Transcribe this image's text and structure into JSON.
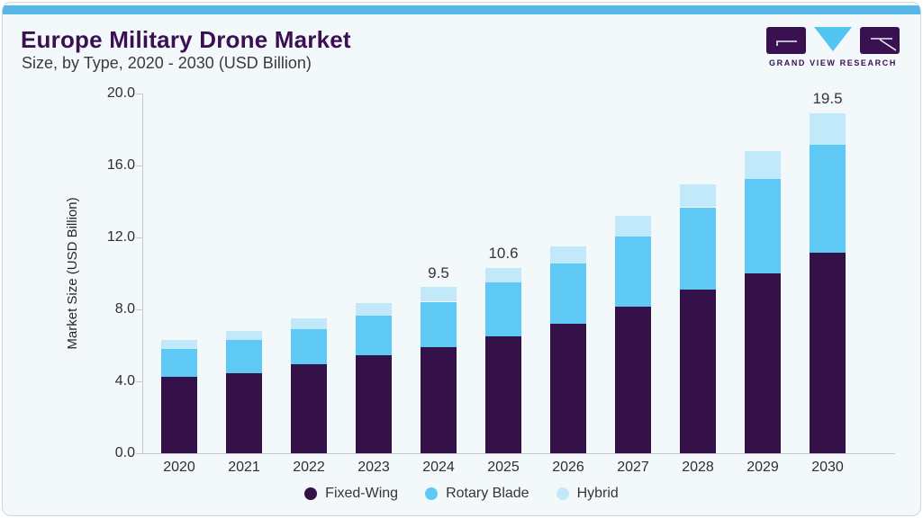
{
  "header": {
    "title": "Europe Military Drone Market",
    "subtitle": "Size, by Type, 2020 - 2030 (USD Billion)"
  },
  "logo": {
    "name": "Grand View Research logo",
    "text": "GRAND VIEW RESEARCH",
    "purple": "#3a1150",
    "blue": "#52c5f2"
  },
  "chart_data": {
    "type": "bar",
    "stacked": true,
    "title": "Europe Military Drone Market Size, by Type, 2020 - 2030 (USD Billion)",
    "categories": [
      "2020",
      "2021",
      "2022",
      "2023",
      "2024",
      "2025",
      "2026",
      "2027",
      "2028",
      "2029",
      "2030"
    ],
    "series": [
      {
        "name": "Fixed-Wing",
        "color": "#341149",
        "values": [
          4.4,
          4.6,
          5.1,
          5.6,
          6.1,
          6.7,
          7.4,
          8.4,
          9.4,
          10.3,
          11.5
        ]
      },
      {
        "name": "Rotary Blade",
        "color": "#5dc9f4",
        "values": [
          1.6,
          1.9,
          2.0,
          2.3,
          2.6,
          3.1,
          3.5,
          4.0,
          4.7,
          5.4,
          6.2
        ]
      },
      {
        "name": "Hybrid",
        "color": "#c1e9fa",
        "values": [
          0.5,
          0.5,
          0.6,
          0.7,
          0.8,
          0.8,
          1.0,
          1.2,
          1.3,
          1.6,
          1.8
        ]
      }
    ],
    "totals": [
      6.5,
      7.0,
      7.7,
      8.6,
      9.5,
      10.6,
      11.9,
      13.6,
      15.4,
      17.3,
      19.5
    ],
    "bar_value_labels": [
      "",
      "",
      "",
      "",
      "9.5",
      "10.6",
      "",
      "",
      "",
      "",
      "19.5"
    ],
    "xlabel": "",
    "ylabel": "Market Size (USD Billion)",
    "ylim": [
      0,
      20
    ],
    "yticks": [
      "20.0",
      "16.0",
      "12.0",
      "8.0",
      "4.0",
      "0.0"
    ],
    "grid": false,
    "legend_position": "bottom",
    "legend": [
      "Fixed-Wing",
      "Rotary Blade",
      "Hybrid"
    ]
  },
  "colors": {
    "card_background": "#f3f8fb",
    "top_strip": "#55b8e8",
    "title_text": "#3b1053",
    "axis_line": "#c4c9cf",
    "axis_text": "#2d2d34"
  }
}
